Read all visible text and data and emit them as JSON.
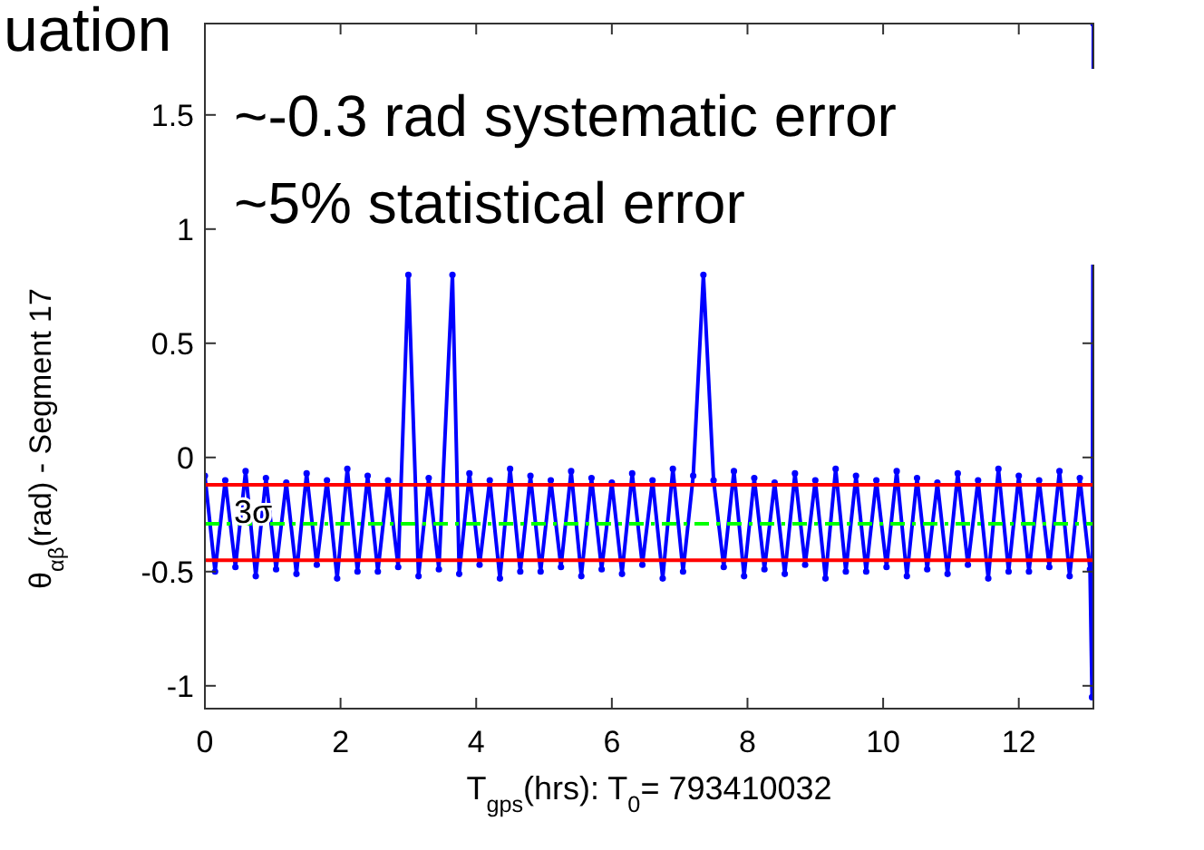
{
  "chart_data": {
    "type": "line",
    "title": "uation",
    "xlabel": "T$_{gps}$(hrs): T$_{0}$= 793410032",
    "ylabel": "θ$_{αβ}$(rad) - Segment 17",
    "annotations": [
      "~-0.3 rad systematic error",
      "~5% statistical error"
    ],
    "xlim": [
      0,
      13.1
    ],
    "ylim": [
      -1.1,
      1.9
    ],
    "xticks": [
      0,
      2,
      4,
      6,
      8,
      10,
      12
    ],
    "yticks": [
      -1,
      -0.5,
      0,
      0.5,
      1,
      1.5
    ],
    "marker": "circle",
    "grid": false,
    "series": [
      {
        "color": "#0000ff",
        "x": [
          0,
          0.15,
          0.3,
          0.45,
          0.6,
          0.75,
          0.9,
          1.05,
          1.2,
          1.35,
          1.5,
          1.65,
          1.8,
          1.95,
          2.1,
          2.25,
          2.4,
          2.55,
          2.7,
          2.85,
          3.0,
          3.15,
          3.3,
          3.45,
          3.65,
          3.75,
          3.9,
          4.05,
          4.2,
          4.35,
          4.5,
          4.65,
          4.8,
          4.95,
          5.1,
          5.25,
          5.4,
          5.55,
          5.7,
          5.85,
          6.0,
          6.15,
          6.3,
          6.45,
          6.6,
          6.75,
          6.9,
          7.05,
          7.2,
          7.35,
          7.5,
          7.65,
          7.8,
          7.95,
          8.1,
          8.25,
          8.4,
          8.55,
          8.7,
          8.85,
          9.0,
          9.15,
          9.3,
          9.45,
          9.6,
          9.75,
          9.9,
          10.05,
          10.2,
          10.35,
          10.5,
          10.65,
          10.8,
          10.95,
          11.1,
          11.25,
          11.4,
          11.55,
          11.7,
          11.85,
          12.0,
          12.15,
          12.3,
          12.45,
          12.6,
          12.75,
          12.9,
          13.05,
          13.08,
          13.1
        ],
        "values": [
          -0.08,
          -0.5,
          -0.1,
          -0.48,
          -0.06,
          -0.52,
          -0.09,
          -0.49,
          -0.11,
          -0.51,
          -0.07,
          -0.47,
          -0.1,
          -0.53,
          -0.05,
          -0.5,
          -0.08,
          -0.5,
          -0.1,
          -0.48,
          0.8,
          -0.52,
          -0.09,
          -0.49,
          0.8,
          -0.51,
          -0.07,
          -0.47,
          -0.1,
          -0.53,
          -0.05,
          -0.5,
          -0.08,
          -0.5,
          -0.1,
          -0.48,
          -0.06,
          -0.52,
          -0.09,
          -0.49,
          -0.11,
          -0.51,
          -0.07,
          -0.47,
          -0.1,
          -0.53,
          -0.05,
          -0.5,
          -0.08,
          0.8,
          -0.1,
          -0.48,
          -0.06,
          -0.52,
          -0.09,
          -0.49,
          -0.11,
          -0.51,
          -0.07,
          -0.47,
          -0.1,
          -0.53,
          -0.05,
          -0.5,
          -0.08,
          -0.5,
          -0.1,
          -0.48,
          -0.06,
          -0.52,
          -0.09,
          -0.49,
          -0.11,
          -0.51,
          -0.07,
          -0.47,
          -0.1,
          -0.53,
          -0.05,
          -0.5,
          -0.08,
          -0.5,
          -0.1,
          -0.48,
          -0.06,
          -0.52,
          -0.09,
          -0.49,
          -1.05,
          1.9
        ]
      }
    ],
    "ref_lines": [
      {
        "axis": "y",
        "value": -0.12,
        "label": "3σ",
        "color": "#ff0000",
        "line_style": "solid"
      },
      {
        "axis": "y",
        "value": -0.45,
        "color": "#ff0000",
        "line_style": "solid"
      },
      {
        "axis": "y",
        "value": -0.29,
        "color": "#00ff00",
        "line_style": "dashed"
      }
    ]
  }
}
